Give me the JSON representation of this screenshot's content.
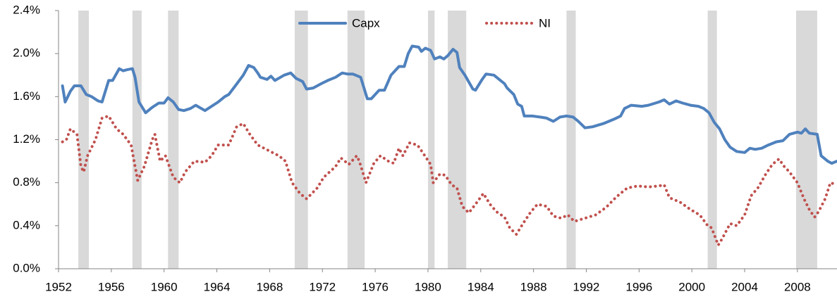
{
  "chart_data": {
    "type": "line",
    "xlim": [
      1952,
      2011
    ],
    "xticks": [
      1952,
      1956,
      1960,
      1964,
      1968,
      1972,
      1976,
      1980,
      1984,
      1988,
      1992,
      1996,
      2000,
      2004,
      2008
    ],
    "ylim": [
      0,
      2.4
    ],
    "yticks": [
      {
        "value": 0,
        "label": "0.0%"
      },
      {
        "value": 0.4,
        "label": "0.4%"
      },
      {
        "value": 0.8,
        "label": "0.8%"
      },
      {
        "value": 1.2,
        "label": "1.2%"
      },
      {
        "value": 1.6,
        "label": "1.6%"
      },
      {
        "value": 2.0,
        "label": "2.0%"
      },
      {
        "value": 2.4,
        "label": "2.4%"
      }
    ],
    "grid": false,
    "legend": "top",
    "recession_color": "#d9d9d9",
    "recessions": [
      [
        1953.5,
        1954.3
      ],
      [
        1957.6,
        1958.3
      ],
      [
        1960.3,
        1961.1
      ],
      [
        1969.9,
        1970.9
      ],
      [
        1973.9,
        1975.2
      ],
      [
        1980.0,
        1980.5
      ],
      [
        1981.5,
        1982.9
      ],
      [
        1990.5,
        1991.2
      ],
      [
        2001.2,
        2001.9
      ],
      [
        2007.9,
        2009.5
      ]
    ],
    "series": [
      {
        "name": "Capx",
        "color": "#4f81bd",
        "style": "solid",
        "x": [
          1952.3,
          1952.5,
          1952.9,
          1953.2,
          1953.7,
          1954.1,
          1954.5,
          1955.0,
          1955.3,
          1955.8,
          1956.1,
          1956.6,
          1956.9,
          1957.2,
          1957.6,
          1957.8,
          1958.1,
          1958.6,
          1959.1,
          1959.6,
          1960.0,
          1960.3,
          1960.7,
          1961.1,
          1961.5,
          1962.0,
          1962.4,
          1963.1,
          1963.6,
          1964.1,
          1964.6,
          1964.9,
          1965.4,
          1966.0,
          1966.4,
          1966.8,
          1967.1,
          1967.3,
          1967.8,
          1968.1,
          1968.4,
          1969.1,
          1969.6,
          1970.0,
          1970.5,
          1970.8,
          1971.3,
          1971.9,
          1972.4,
          1973.0,
          1973.5,
          1973.9,
          1974.3,
          1974.9,
          1975.4,
          1975.7,
          1976.3,
          1976.7,
          1977.2,
          1977.8,
          1978.2,
          1978.5,
          1978.8,
          1979.3,
          1979.5,
          1979.8,
          1980.2,
          1980.5,
          1980.9,
          1981.2,
          1981.5,
          1981.9,
          1982.2,
          1982.4,
          1982.8,
          1983.4,
          1983.6,
          1984.1,
          1984.4,
          1985.0,
          1985.4,
          1985.8,
          1986.0,
          1986.5,
          1986.8,
          1987.1,
          1987.3,
          1987.9,
          1988.5,
          1989.0,
          1989.5,
          1990.0,
          1990.5,
          1991.0,
          1991.4,
          1991.9,
          1992.5,
          1993.3,
          1994.1,
          1994.6,
          1994.9,
          1995.4,
          1996.2,
          1996.7,
          1997.5,
          1997.9,
          1998.3,
          1998.8,
          1999.3,
          1999.9,
          2000.5,
          2000.9,
          2001.3,
          2001.7,
          2002.1,
          2002.5,
          2002.9,
          2003.4,
          2004.0,
          2004.4,
          2004.8,
          2005.3,
          2005.8,
          2006.4,
          2006.9,
          2007.4,
          2008.0,
          2008.3,
          2008.6,
          2008.9,
          2009.5,
          2009.8,
          2010.3,
          2010.6,
          2011.0
        ],
        "values": [
          1.7,
          1.55,
          1.65,
          1.7,
          1.7,
          1.62,
          1.6,
          1.56,
          1.55,
          1.75,
          1.75,
          1.86,
          1.84,
          1.85,
          1.86,
          1.78,
          1.55,
          1.45,
          1.5,
          1.54,
          1.54,
          1.59,
          1.55,
          1.48,
          1.47,
          1.49,
          1.52,
          1.47,
          1.51,
          1.55,
          1.6,
          1.62,
          1.7,
          1.8,
          1.89,
          1.87,
          1.82,
          1.78,
          1.76,
          1.79,
          1.75,
          1.8,
          1.82,
          1.77,
          1.74,
          1.67,
          1.68,
          1.72,
          1.75,
          1.78,
          1.82,
          1.81,
          1.81,
          1.78,
          1.58,
          1.58,
          1.66,
          1.66,
          1.8,
          1.88,
          1.88,
          2.0,
          2.07,
          2.06,
          2.02,
          2.05,
          2.03,
          1.95,
          1.97,
          1.95,
          1.98,
          2.04,
          2.01,
          1.87,
          1.8,
          1.67,
          1.66,
          1.76,
          1.81,
          1.8,
          1.76,
          1.72,
          1.68,
          1.62,
          1.53,
          1.51,
          1.42,
          1.42,
          1.41,
          1.4,
          1.37,
          1.41,
          1.42,
          1.41,
          1.37,
          1.31,
          1.32,
          1.35,
          1.39,
          1.42,
          1.49,
          1.52,
          1.51,
          1.52,
          1.55,
          1.57,
          1.53,
          1.56,
          1.54,
          1.52,
          1.51,
          1.49,
          1.45,
          1.36,
          1.3,
          1.2,
          1.13,
          1.09,
          1.08,
          1.12,
          1.11,
          1.12,
          1.15,
          1.18,
          1.19,
          1.25,
          1.27,
          1.26,
          1.3,
          1.26,
          1.25,
          1.05,
          1.0,
          0.98,
          1.0
        ]
      },
      {
        "name": "NI",
        "color": "#c0504d",
        "style": "dotted",
        "x": [
          1952.3,
          1952.6,
          1952.9,
          1953.4,
          1953.7,
          1953.9,
          1954.2,
          1954.8,
          1955.3,
          1955.8,
          1956.4,
          1956.9,
          1957.5,
          1958.0,
          1958.5,
          1959.1,
          1959.3,
          1959.7,
          1960.1,
          1960.7,
          1961.2,
          1961.6,
          1962.3,
          1963.1,
          1963.6,
          1964.1,
          1964.9,
          1965.5,
          1966.0,
          1966.5,
          1967.1,
          1967.9,
          1968.7,
          1969.2,
          1969.7,
          1970.3,
          1970.8,
          1971.6,
          1972.1,
          1973.0,
          1973.4,
          1974.0,
          1974.6,
          1974.8,
          1975.3,
          1975.9,
          1976.4,
          1977.0,
          1977.4,
          1977.8,
          1978.1,
          1978.6,
          1979.2,
          1979.6,
          1980.2,
          1980.4,
          1980.9,
          1981.3,
          1981.8,
          1982.2,
          1982.6,
          1983.1,
          1983.6,
          1984.2,
          1984.7,
          1985.2,
          1985.8,
          1986.2,
          1986.7,
          1987.2,
          1987.8,
          1988.3,
          1989.0,
          1989.5,
          1990.1,
          1990.6,
          1991.1,
          1991.9,
          1992.7,
          1993.5,
          1994.3,
          1995.1,
          1995.9,
          1996.7,
          1997.5,
          1997.9,
          1998.3,
          1999.1,
          1999.9,
          2000.6,
          2001.2,
          2001.5,
          2002.0,
          2002.3,
          2002.9,
          2003.4,
          2004.0,
          2004.5,
          2005.0,
          2005.6,
          2006.1,
          2006.6,
          2007.0,
          2007.4,
          2008.0,
          2008.5,
          2008.9,
          2009.3,
          2009.6,
          2010.1,
          2010.5,
          2011.0
        ],
        "values": [
          1.18,
          1.2,
          1.3,
          1.25,
          0.95,
          0.9,
          1.05,
          1.2,
          1.4,
          1.42,
          1.3,
          1.25,
          1.15,
          0.82,
          0.95,
          1.2,
          1.25,
          1.0,
          1.05,
          0.85,
          0.8,
          0.9,
          1.0,
          0.99,
          1.05,
          1.15,
          1.15,
          1.32,
          1.35,
          1.25,
          1.15,
          1.1,
          1.05,
          1.0,
          0.8,
          0.7,
          0.65,
          0.75,
          0.85,
          0.95,
          1.03,
          0.97,
          1.05,
          1.0,
          0.8,
          0.98,
          1.05,
          1.0,
          0.98,
          1.12,
          1.05,
          1.17,
          1.15,
          1.08,
          0.97,
          0.8,
          0.88,
          0.87,
          0.78,
          0.75,
          0.58,
          0.52,
          0.6,
          0.7,
          0.6,
          0.53,
          0.48,
          0.38,
          0.32,
          0.42,
          0.53,
          0.6,
          0.58,
          0.49,
          0.47,
          0.5,
          0.44,
          0.47,
          0.5,
          0.57,
          0.67,
          0.75,
          0.77,
          0.76,
          0.77,
          0.78,
          0.66,
          0.62,
          0.55,
          0.5,
          0.4,
          0.38,
          0.22,
          0.28,
          0.42,
          0.4,
          0.5,
          0.68,
          0.75,
          0.88,
          0.97,
          1.02,
          0.95,
          0.9,
          0.8,
          0.65,
          0.55,
          0.48,
          0.53,
          0.65,
          0.8,
          0.78
        ]
      }
    ]
  }
}
